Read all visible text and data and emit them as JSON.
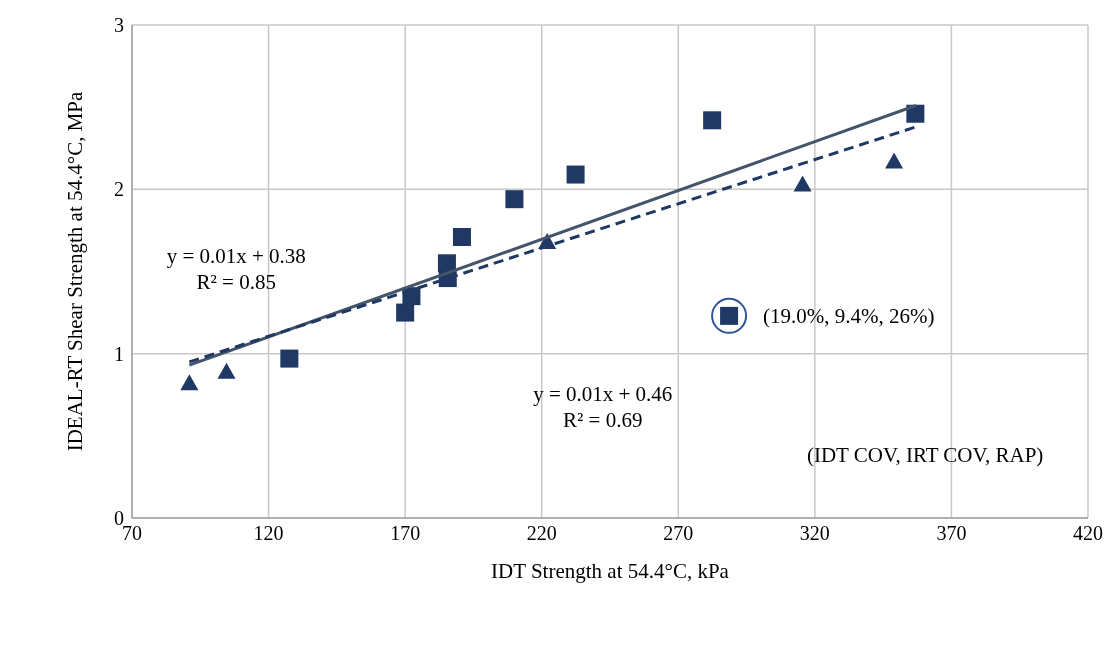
{
  "chart_data": {
    "type": "scatter",
    "xlabel": "IDT Strength at 54.4°C, kPa",
    "ylabel": "IDEAL-RT Shear Strength at 54.4°C, MPa",
    "xlim": [
      70,
      420
    ],
    "xticks": [
      70,
      120,
      170,
      220,
      270,
      320,
      370,
      420
    ],
    "ylim": [
      0,
      3
    ],
    "yticks": [
      0,
      1,
      2,
      3
    ],
    "grid": true,
    "series": [
      {
        "marker": "square",
        "color": "#1f3864",
        "x": [
          127.6,
          170,
          172.3,
          185.3,
          185.6,
          190.8,
          210,
          232.4,
          282.4,
          288.6,
          356.8
        ],
        "values": [
          0.97,
          1.25,
          1.35,
          1.55,
          1.46,
          1.71,
          1.94,
          2.09,
          2.42,
          1.23,
          2.46
        ]
      },
      {
        "marker": "triangle",
        "color": "#1f3864",
        "x": [
          91,
          104.6,
          222,
          315.5,
          349
        ],
        "values": [
          0.82,
          0.89,
          1.68,
          2.03,
          2.17
        ]
      },
      {
        "type": "line",
        "line_style": "solid",
        "color": "#44546a",
        "x": [
          91,
          357
        ],
        "values": [
          0.93,
          2.51
        ]
      },
      {
        "type": "line",
        "line_style": "dashed",
        "color": "#1f3864",
        "x": [
          91,
          357
        ],
        "values": [
          0.95,
          2.38
        ]
      }
    ],
    "annotations": [
      "y = 0.01x + 0.38\nR² = 0.85",
      "y = 0.01x + 0.46\nR² = 0.69",
      {
        "text": "(19.0%, 9.4%, 26%)",
        "x": 288.6,
        "y": 1.23
      },
      "(IDT COV, IRT COV, RAP)"
    ]
  }
}
